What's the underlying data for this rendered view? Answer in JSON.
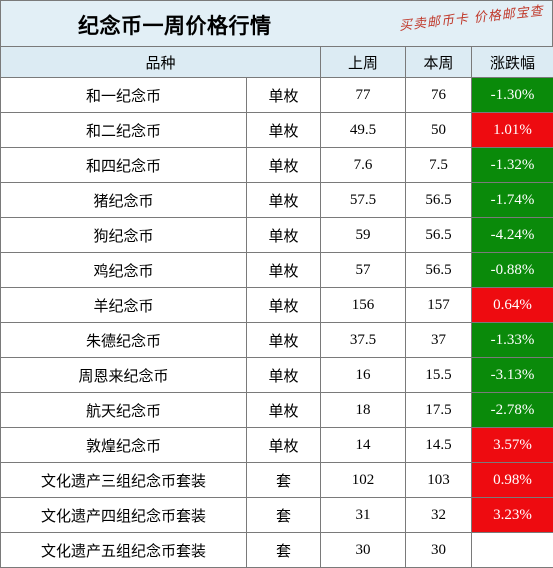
{
  "title": "纪念币一周价格行情",
  "watermark": "买卖邮币卡 价格邮宝查",
  "colors": {
    "up": "#ee0b10",
    "down": "#0a8a0a",
    "header_bg": "#dcebf3"
  },
  "headers": {
    "variety": "品种",
    "last_week": "上周",
    "this_week": "本周",
    "change": "涨跌幅"
  },
  "rows": [
    {
      "name": "和一纪念币",
      "unit": "单枚",
      "last": "77",
      "this": "76",
      "change": "-1.30%",
      "dir": "down"
    },
    {
      "name": "和二纪念币",
      "unit": "单枚",
      "last": "49.5",
      "this": "50",
      "change": "1.01%",
      "dir": "up"
    },
    {
      "name": "和四纪念币",
      "unit": "单枚",
      "last": "7.6",
      "this": "7.5",
      "change": "-1.32%",
      "dir": "down"
    },
    {
      "name": "猪纪念币",
      "unit": "单枚",
      "last": "57.5",
      "this": "56.5",
      "change": "-1.74%",
      "dir": "down"
    },
    {
      "name": "狗纪念币",
      "unit": "单枚",
      "last": "59",
      "this": "56.5",
      "change": "-4.24%",
      "dir": "down"
    },
    {
      "name": "鸡纪念币",
      "unit": "单枚",
      "last": "57",
      "this": "56.5",
      "change": "-0.88%",
      "dir": "down"
    },
    {
      "name": "羊纪念币",
      "unit": "单枚",
      "last": "156",
      "this": "157",
      "change": "0.64%",
      "dir": "up"
    },
    {
      "name": "朱德纪念币",
      "unit": "单枚",
      "last": "37.5",
      "this": "37",
      "change": "-1.33%",
      "dir": "down"
    },
    {
      "name": "周恩来纪念币",
      "unit": "单枚",
      "last": "16",
      "this": "15.5",
      "change": "-3.13%",
      "dir": "down"
    },
    {
      "name": "航天纪念币",
      "unit": "单枚",
      "last": "18",
      "this": "17.5",
      "change": "-2.78%",
      "dir": "down"
    },
    {
      "name": "敦煌纪念币",
      "unit": "单枚",
      "last": "14",
      "this": "14.5",
      "change": "3.57%",
      "dir": "up"
    },
    {
      "name": "文化遗产三组纪念币套装",
      "unit": "套",
      "last": "102",
      "this": "103",
      "change": "0.98%",
      "dir": "up"
    },
    {
      "name": "文化遗产四组纪念币套装",
      "unit": "套",
      "last": "31",
      "this": "32",
      "change": "3.23%",
      "dir": "up"
    },
    {
      "name": "文化遗产五组纪念币套装",
      "unit": "套",
      "last": "30",
      "this": "30",
      "change": "",
      "dir": "none"
    }
  ]
}
